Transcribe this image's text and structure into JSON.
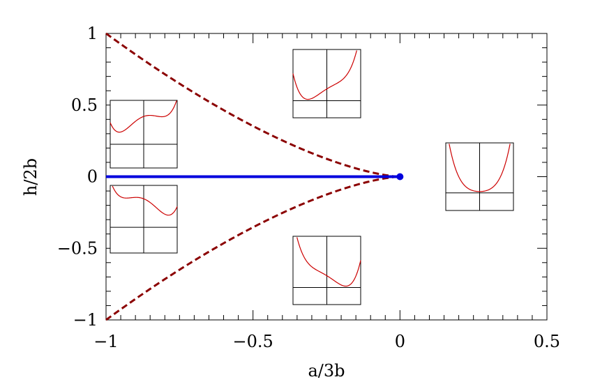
{
  "chart_data": {
    "type": "line",
    "xlabel": "a/3b",
    "ylabel": "h/2b",
    "xlim": [
      -1,
      0.5
    ],
    "ylim": [
      -1,
      1
    ],
    "xticks": [
      {
        "value": -1,
        "label": "−1"
      },
      {
        "value": -0.5,
        "label": "−0.5"
      },
      {
        "value": 0,
        "label": "0"
      },
      {
        "value": 0.5,
        "label": "0.5"
      }
    ],
    "yticks": [
      {
        "value": -1,
        "label": "−1"
      },
      {
        "value": -0.5,
        "label": "−0.5"
      },
      {
        "value": 0,
        "label": "0"
      },
      {
        "value": 0.5,
        "label": "0.5"
      },
      {
        "value": 1,
        "label": "1"
      }
    ],
    "series": [
      {
        "style": "dashed",
        "color": "#8b0000",
        "x": [
          -1,
          -0.9,
          -0.8,
          -0.7,
          -0.6,
          -0.5,
          -0.4,
          -0.3,
          -0.2,
          -0.1,
          -0.05,
          0
        ],
        "y": [
          1,
          0.854,
          0.716,
          0.586,
          0.465,
          0.354,
          0.253,
          0.164,
          0.089,
          0.032,
          0.011,
          0
        ]
      },
      {
        "style": "dashed",
        "color": "#8b0000",
        "x": [
          -1,
          -0.9,
          -0.8,
          -0.7,
          -0.6,
          -0.5,
          -0.4,
          -0.3,
          -0.2,
          -0.1,
          -0.05,
          0
        ],
        "y": [
          -1,
          -0.854,
          -0.716,
          -0.586,
          -0.465,
          -0.354,
          -0.253,
          -0.164,
          -0.089,
          -0.032,
          -0.011,
          0
        ]
      },
      {
        "style": "solid",
        "color": "#0000dd",
        "x": [
          -1,
          0
        ],
        "y": [
          0,
          0
        ]
      }
    ],
    "point": {
      "x": 0,
      "y": 0,
      "color": "#0000dd"
    },
    "insets": [
      {
        "name": "inset-double-well-symmetric",
        "a": -0.83,
        "h": 0
      },
      {
        "name": "inset-double-well-right-deep",
        "a": -0.83,
        "h": -0.35
      },
      {
        "name": "inset-double-well-left-deep",
        "a": -0.83,
        "h": 0.35
      },
      {
        "name": "inset-single-well-upper",
        "a": -0.25,
        "h": 0.6
      },
      {
        "name": "inset-single-well-lower",
        "a": -0.25,
        "h": -0.6
      },
      {
        "name": "inset-single-well-positive-a",
        "a": 0.3,
        "h": 0
      }
    ],
    "colors": {
      "dashed_curve": "#8b0000",
      "axis_line": "#0000dd",
      "inset_curve": "#cc0000"
    }
  }
}
